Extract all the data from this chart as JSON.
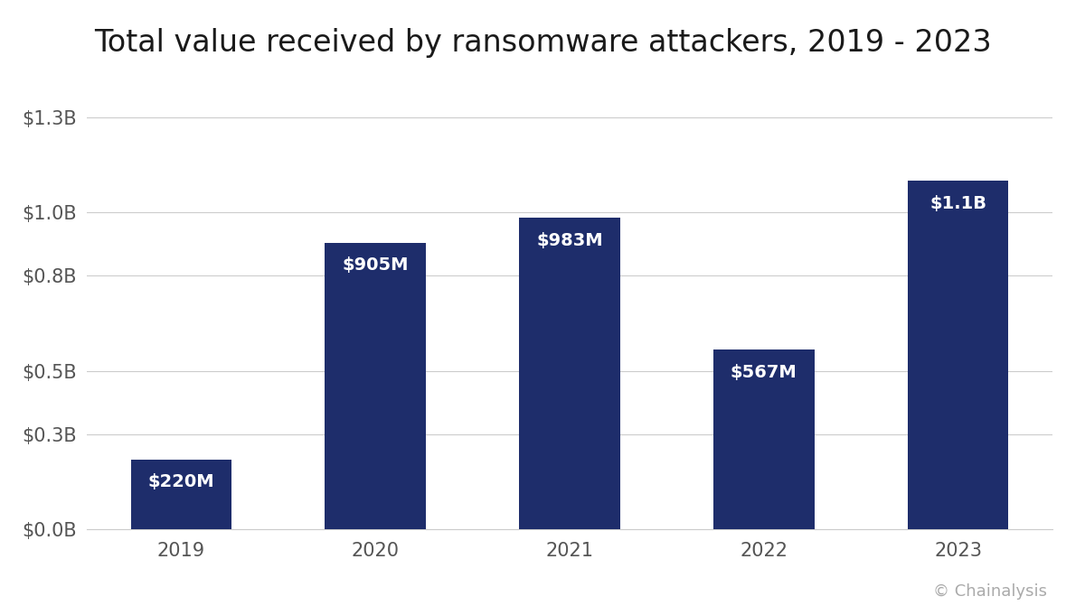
{
  "title": "Total value received by ransomware attackers, 2019 - 2023",
  "categories": [
    "2019",
    "2020",
    "2021",
    "2022",
    "2023"
  ],
  "values": [
    0.22,
    0.905,
    0.983,
    0.567,
    1.1
  ],
  "labels": [
    "$220M",
    "$905M",
    "$983M",
    "$567M",
    "$1.1B"
  ],
  "bar_color": "#1e2d6b",
  "background_color": "#ffffff",
  "footer_color": "#000000",
  "footer_text_color": "#aaaaaa",
  "text_color": "#ffffff",
  "title_color": "#1a1a1a",
  "axis_label_color": "#555555",
  "grid_color": "#cccccc",
  "ylim": [
    0,
    1.4
  ],
  "yticks": [
    0.0,
    0.3,
    0.5,
    0.8,
    1.0,
    1.3
  ],
  "ytick_labels": [
    "$0.0B",
    "$0.3B",
    "$0.5B",
    "$0.8B",
    "$1.0B",
    "$1.3B"
  ],
  "title_fontsize": 24,
  "tick_fontsize": 15,
  "label_fontsize": 14,
  "footer_text": "© Chainalysis",
  "bar_width": 0.52
}
